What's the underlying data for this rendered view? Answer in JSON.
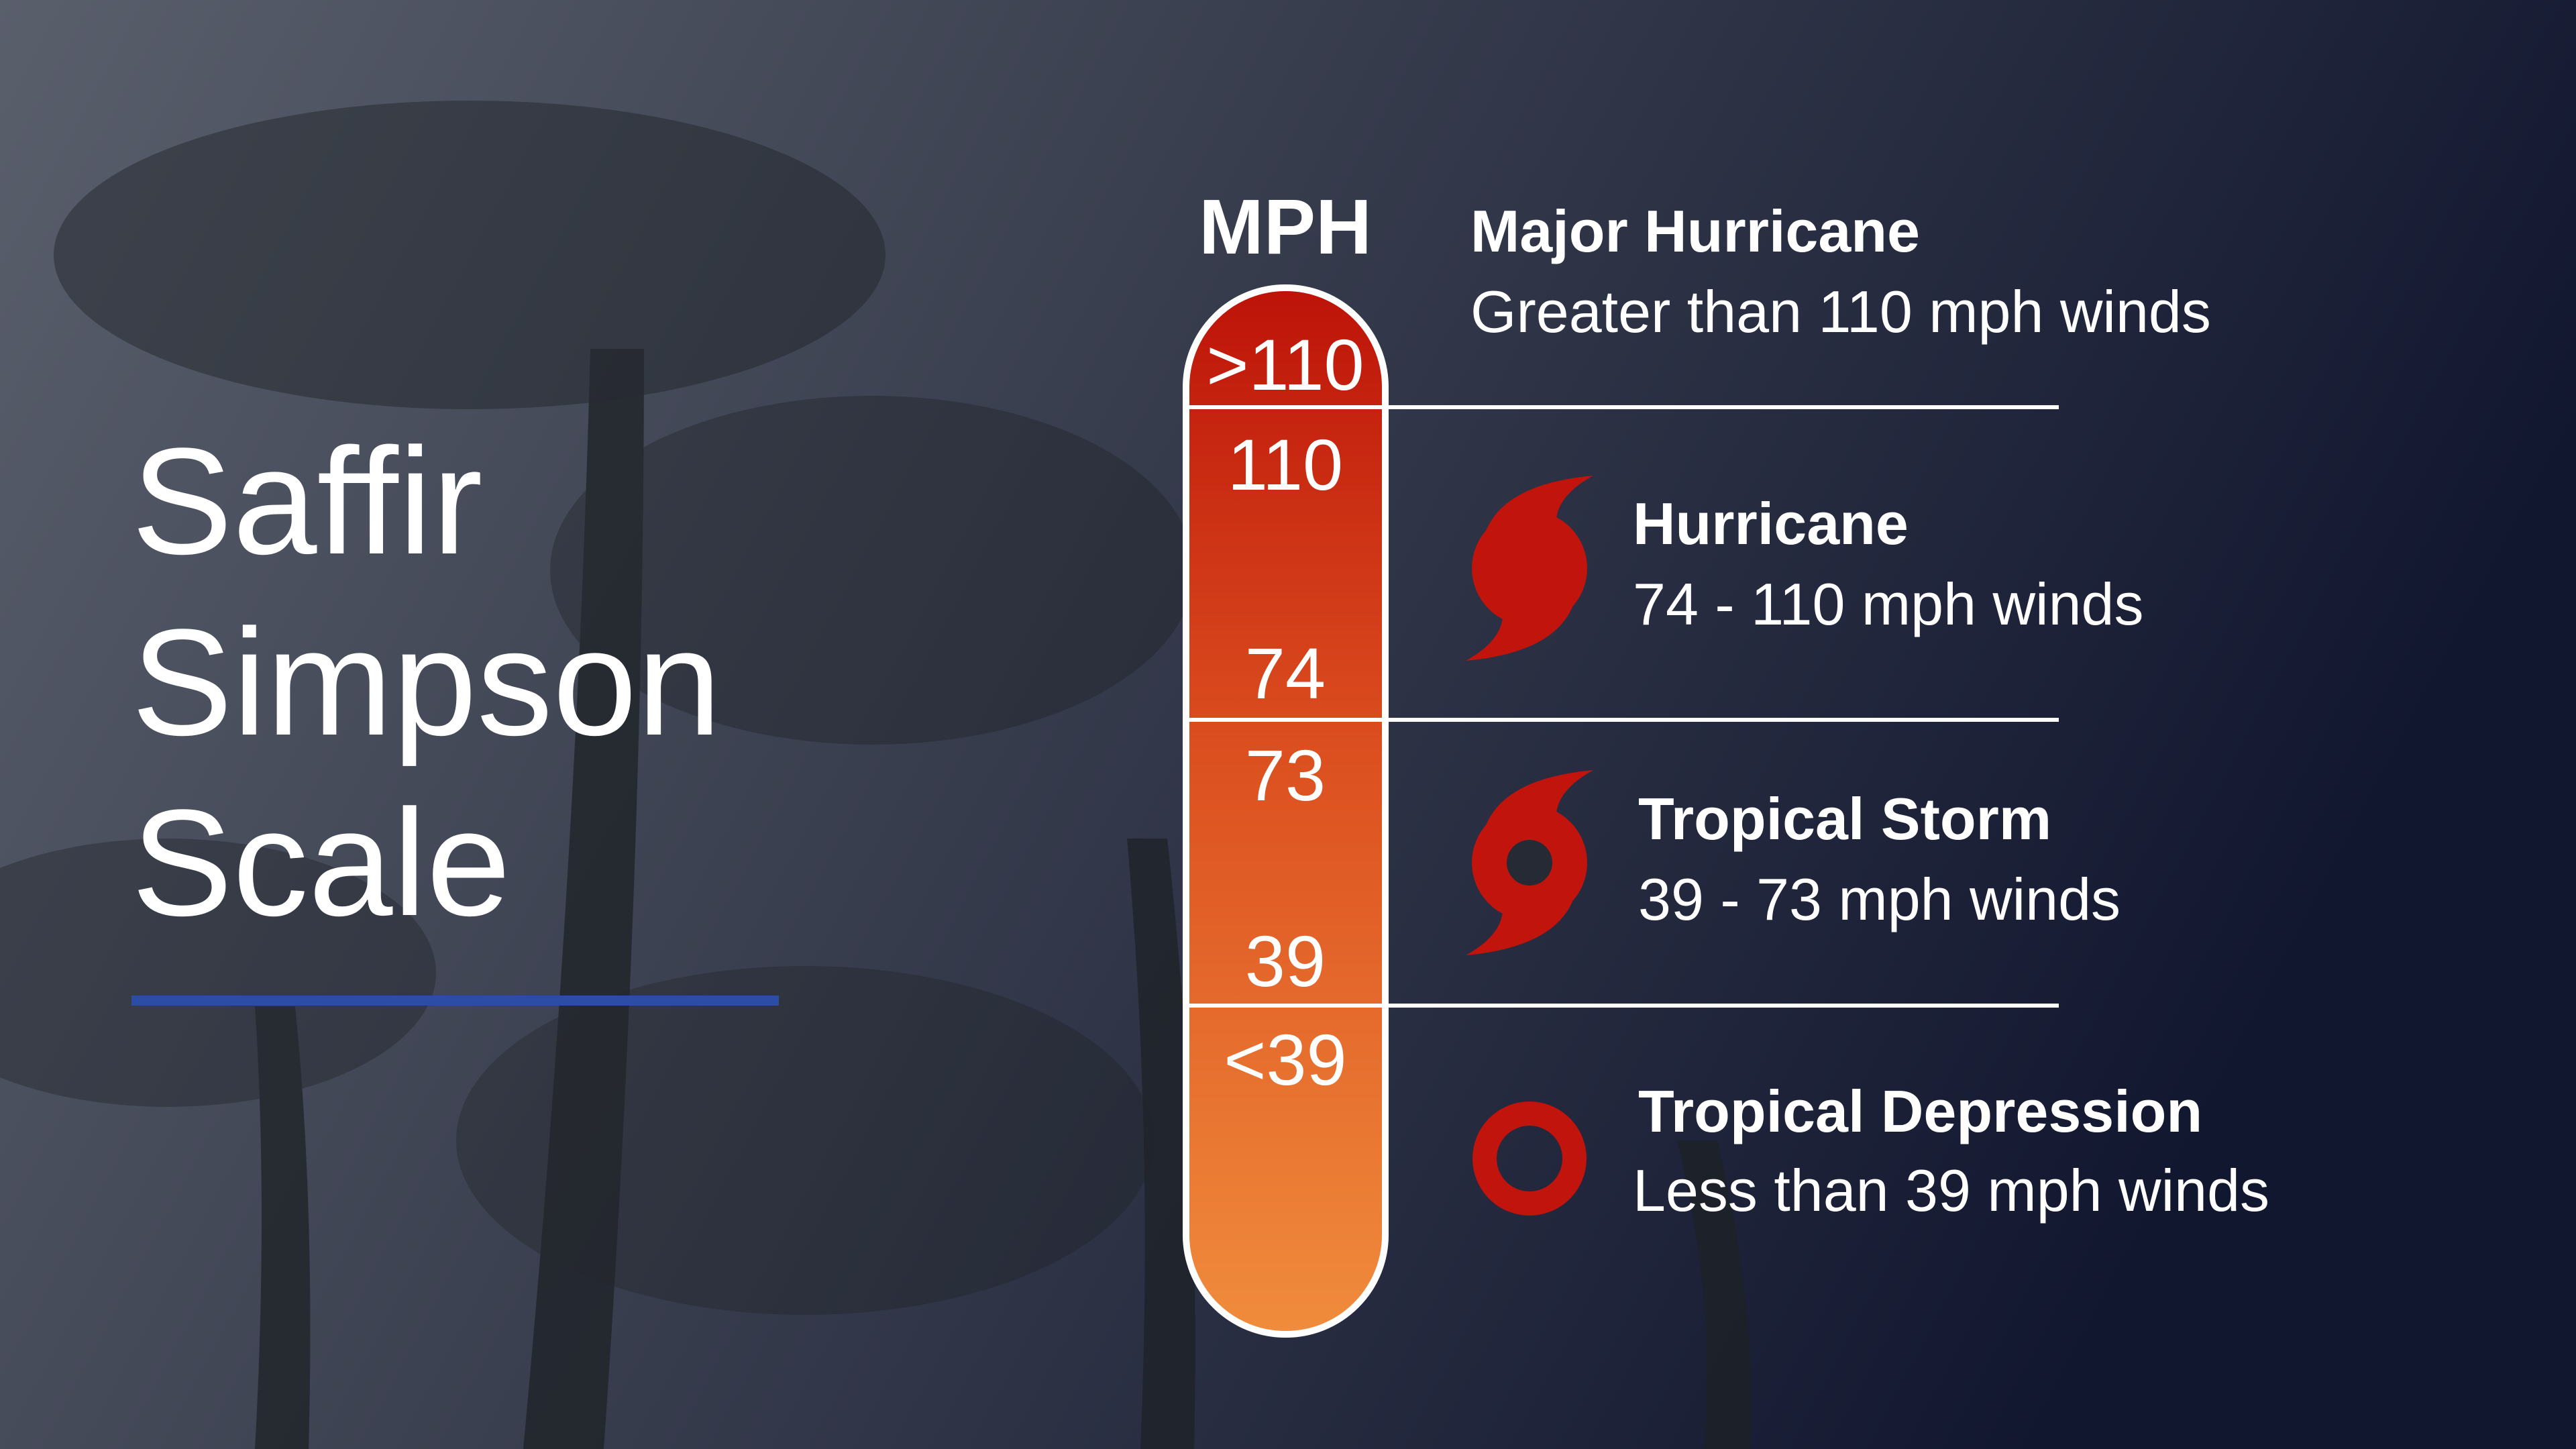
{
  "title": {
    "lines": [
      "Saffir",
      "Simpson",
      "Scale"
    ]
  },
  "scale": {
    "unit": "MPH",
    "labels": [
      ">110",
      "110",
      "74",
      "73",
      "39",
      "<39"
    ]
  },
  "categories": [
    {
      "name": "Major Hurricane",
      "description": "Greater than 110 mph winds"
    },
    {
      "name": "Hurricane",
      "description": "74 - 110 mph winds"
    },
    {
      "name": "Tropical Storm",
      "description": "39 - 73 mph winds"
    },
    {
      "name": "Tropical Depression",
      "description": "Less than 39 mph winds"
    }
  ]
}
